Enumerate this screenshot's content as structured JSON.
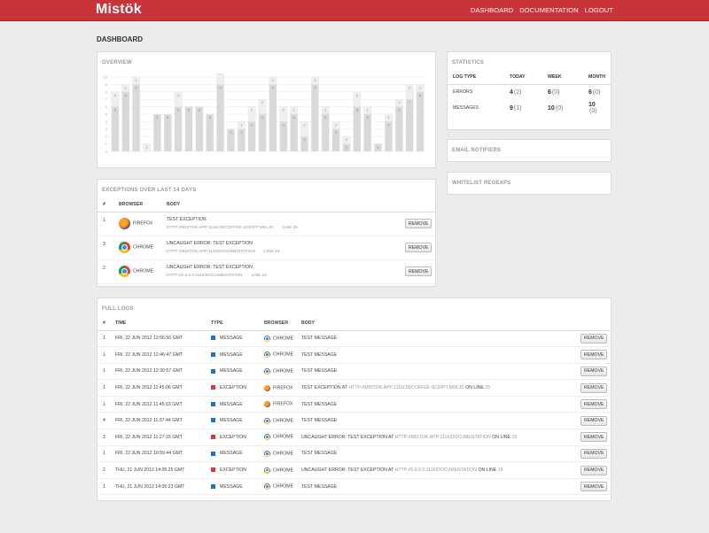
{
  "header": {
    "brand": "Mistök",
    "nav": [
      "DASHBOARD",
      "DOCUMENTATION",
      "LOGOUT"
    ]
  },
  "page_title": "DASHBOARD",
  "overview": {
    "title": "OVERVIEW",
    "chart_data": {
      "type": "bar",
      "ylim": [
        0,
        10
      ],
      "yticks": [
        0,
        1,
        2,
        3,
        4,
        5,
        6,
        7,
        8,
        9,
        10
      ],
      "grid": true,
      "series": [
        {
          "values": [
            6,
            8,
            9,
            0,
            5,
            5,
            6,
            6,
            6,
            5,
            9,
            3,
            3,
            4,
            5,
            9,
            4,
            5,
            2,
            9,
            5,
            3,
            1,
            6,
            5,
            1,
            4,
            6,
            7,
            8
          ],
          "color": "#d9d9d9"
        },
        {
          "values": [
            2,
            1,
            1,
            1,
            0,
            0,
            2,
            0,
            0,
            0,
            2,
            0,
            1,
            2,
            2,
            1,
            2,
            1,
            2,
            1,
            1,
            1,
            1,
            2,
            1,
            0,
            1,
            1,
            2,
            1
          ],
          "color": "#efefef"
        }
      ]
    }
  },
  "exceptions": {
    "title": "EXCEPTIONS OVER LAST 14 DAYS",
    "headers": [
      "#",
      "BROWSER",
      "BODY"
    ],
    "rows": [
      {
        "num": "1",
        "browser": "FIREFOX",
        "icon": "firefox-icon",
        "body": "TEST EXCEPTION",
        "url": "HTTP://MISTOK.APP:1116/JS/COFFEE-SCRIPT.MIN.JS",
        "line": "LINE 25",
        "action": "REMOVE"
      },
      {
        "num": "3",
        "browser": "CHROME",
        "icon": "chrome-icon",
        "body": "UNCAUGHT ERROR: TEST EXCEPTION",
        "url": "HTTP://MISTOK.APP:1116/DOCUMENTATION",
        "line": "LINE 19",
        "action": "REMOVE"
      },
      {
        "num": "2",
        "browser": "CHROME",
        "icon": "chrome-icon",
        "body": "UNCAUGHT ERROR: TEST EXCEPTION",
        "url": "HTTP://0.0.0.0:1116/DOCUMENTATION",
        "line": "LINE 19",
        "action": "REMOVE"
      }
    ]
  },
  "statistics": {
    "title": "STATISTICS",
    "headers": [
      "LOG TYPE",
      "TODAY",
      "WEEK",
      "MONTH"
    ],
    "rows": [
      {
        "label": "ERRORS",
        "today": "4",
        "today_sub": "(2)",
        "week": "6",
        "week_sub": "(0)",
        "month": "6",
        "month_sub": "(0)"
      },
      {
        "label": "MESSAGES",
        "today": "9",
        "today_sub": "(1)",
        "week": "10",
        "week_sub": "(0)",
        "month": "10",
        "month_sub": "(0)"
      }
    ]
  },
  "email_notifiers": {
    "title": "EMAIL NOTIFIERS"
  },
  "whitelist": {
    "title": "WHITELIST REGEXPS"
  },
  "full_logs": {
    "title": "FULL LOGS",
    "headers": [
      "#",
      "TIME",
      "TYPE",
      "BROWSER",
      "BODY"
    ],
    "rows": [
      {
        "num": "1",
        "time": "FRI, 22 JUN 2012 12:56:56 GMT",
        "type": "MESSAGE",
        "browser": "CHROME",
        "body": "TEST MESSAGE",
        "url": "",
        "line": "",
        "action": "REMOVE"
      },
      {
        "num": "1",
        "time": "FRI, 22 JUN 2012 12:46:47 GMT",
        "type": "MESSAGE",
        "browser": "CHROME",
        "body": "TEST MESSAGE",
        "url": "",
        "line": "",
        "action": "REMOVE"
      },
      {
        "num": "1",
        "time": "FRI, 22 JUN 2012 12:30:57 GMT",
        "type": "MESSAGE",
        "browser": "CHROME",
        "body": "TEST MESSAGE",
        "url": "",
        "line": "",
        "action": "REMOVE"
      },
      {
        "num": "1",
        "time": "FRI, 22 JUN 2012 11:45:06 GMT",
        "type": "EXCEPTION",
        "browser": "FIREFOX",
        "body": "TEST EXCEPTION AT",
        "url": "HTTP://MISTOK.APP:1116/JS/COFFEE-SCRIPT.MIN.JS",
        "line": "25",
        "action": "REMOVE"
      },
      {
        "num": "1",
        "time": "FRI, 22 JUN 2012 11:45:03 GMT",
        "type": "MESSAGE",
        "browser": "FIREFOX",
        "body": "TEST MESSAGE",
        "url": "",
        "line": "",
        "action": "REMOVE"
      },
      {
        "num": "4",
        "time": "FRI, 22 JUN 2012 11:37:44 GMT",
        "type": "MESSAGE",
        "browser": "CHROME",
        "body": "TEST MESSAGE",
        "url": "",
        "line": "",
        "action": "REMOVE"
      },
      {
        "num": "3",
        "time": "FRI, 22 JUN 2012 11:27:15 GMT",
        "type": "EXCEPTION",
        "browser": "CHROME",
        "body": "UNCAUGHT ERROR: TEST EXCEPTION AT",
        "url": "HTTP://MISTOK.APP:1116/DOCUMENTATION",
        "line": "19",
        "action": "REMOVE"
      },
      {
        "num": "1",
        "time": "FRI, 22 JUN 2012 10:59:44 GMT",
        "type": "MESSAGE",
        "browser": "CHROME",
        "body": "TEST MESSAGE",
        "url": "",
        "line": "",
        "action": "REMOVE"
      },
      {
        "num": "2",
        "time": "THU, 21 JUN 2012 14:05:25 GMT",
        "type": "EXCEPTION",
        "browser": "CHROME",
        "body": "UNCAUGHT ERROR: TEST EXCEPTION AT",
        "url": "HTTP://0.0.0.0:1116/DOCUMENTATION",
        "line": "19",
        "action": "REMOVE"
      },
      {
        "num": "1",
        "time": "THU, 21 JUN 2012 14:05:23 GMT",
        "type": "MESSAGE",
        "browser": "CHROME",
        "body": "TEST MESSAGE",
        "url": "",
        "line": "",
        "action": "REMOVE"
      }
    ],
    "on_line_label": "ON LINE"
  }
}
